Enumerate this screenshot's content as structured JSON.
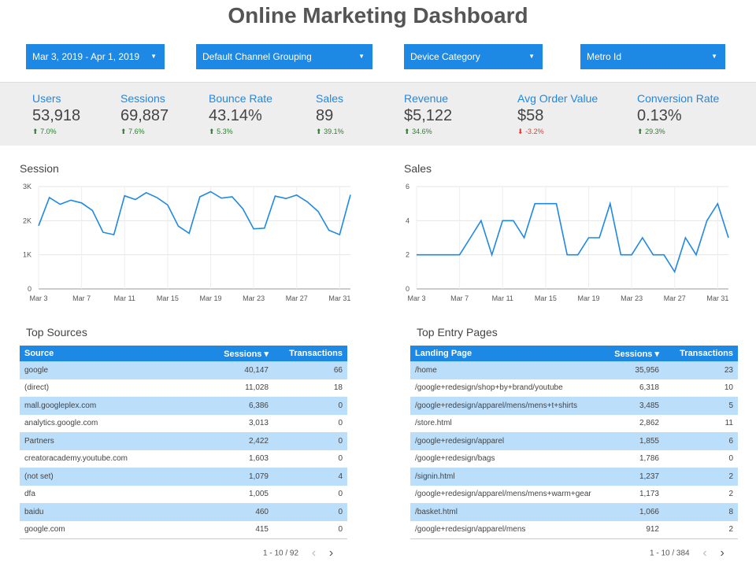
{
  "title": "Online Marketing Dashboard",
  "filters": [
    {
      "label": "Mar 3, 2019 - Apr 1, 2019"
    },
    {
      "label": "Default Channel Grouping"
    },
    {
      "label": "Device Category"
    },
    {
      "label": "Metro Id"
    }
  ],
  "kpis": [
    {
      "label": "Users",
      "value": "53,918",
      "change": "7.0%",
      "direction": "up"
    },
    {
      "label": "Sessions",
      "value": "69,887",
      "change": "7.6%",
      "direction": "up"
    },
    {
      "label": "Bounce Rate",
      "value": "43.14%",
      "change": "5.3%",
      "direction": "up"
    },
    {
      "label": "Sales",
      "value": "89",
      "change": "39.1%",
      "direction": "up"
    },
    {
      "label": "Revenue",
      "value": "$5,122",
      "change": "34.6%",
      "direction": "up"
    },
    {
      "label": "Avg Order Value",
      "value": "$58",
      "change": "-3.2%",
      "direction": "down"
    },
    {
      "label": "Conversion Rate",
      "value": "0.13%",
      "change": "29.3%",
      "direction": "up"
    }
  ],
  "colors": {
    "accent": "#1e88e5",
    "row_highlight": "#bbdefb",
    "positive": "#2e7d32",
    "negative": "#e53935"
  },
  "chart_data": [
    {
      "type": "line",
      "title": "Session",
      "x_tick_labels": [
        "Mar 3",
        "Mar 7",
        "Mar 11",
        "Mar 15",
        "Mar 19",
        "Mar 23",
        "Mar 27",
        "Mar 31"
      ],
      "y_tick_labels": [
        "0",
        "1K",
        "2K",
        "3K"
      ],
      "ylim": [
        0,
        3000
      ],
      "grid": true,
      "x": [
        "Mar 3",
        "Mar 4",
        "Mar 5",
        "Mar 6",
        "Mar 7",
        "Mar 8",
        "Mar 9",
        "Mar 10",
        "Mar 11",
        "Mar 12",
        "Mar 13",
        "Mar 14",
        "Mar 15",
        "Mar 16",
        "Mar 17",
        "Mar 18",
        "Mar 19",
        "Mar 20",
        "Mar 21",
        "Mar 22",
        "Mar 23",
        "Mar 24",
        "Mar 25",
        "Mar 26",
        "Mar 27",
        "Mar 28",
        "Mar 29",
        "Mar 30",
        "Mar 31",
        "Apr 1"
      ],
      "values": [
        1850,
        2680,
        2480,
        2600,
        2520,
        2300,
        1660,
        1590,
        2730,
        2620,
        2820,
        2680,
        2460,
        1840,
        1630,
        2700,
        2850,
        2660,
        2700,
        2350,
        1760,
        1780,
        2720,
        2650,
        2750,
        2550,
        2270,
        1720,
        1590,
        2760
      ]
    },
    {
      "type": "line",
      "title": "Sales",
      "x_tick_labels": [
        "Mar 3",
        "Mar 7",
        "Mar 11",
        "Mar 15",
        "Mar 19",
        "Mar 23",
        "Mar 27",
        "Mar 31"
      ],
      "y_tick_labels": [
        "0",
        "2",
        "4",
        "6"
      ],
      "ylim": [
        0,
        6
      ],
      "grid": true,
      "x": [
        "Mar 3",
        "Mar 4",
        "Mar 5",
        "Mar 6",
        "Mar 7",
        "Mar 8",
        "Mar 9",
        "Mar 10",
        "Mar 11",
        "Mar 12",
        "Mar 13",
        "Mar 14",
        "Mar 15",
        "Mar 16",
        "Mar 17",
        "Mar 18",
        "Mar 19",
        "Mar 20",
        "Mar 21",
        "Mar 22",
        "Mar 23",
        "Mar 24",
        "Mar 25",
        "Mar 26",
        "Mar 27",
        "Mar 28",
        "Mar 29",
        "Mar 30",
        "Mar 31",
        "Apr 1"
      ],
      "values": [
        2,
        2,
        2,
        2,
        2,
        3,
        4,
        2,
        4,
        4,
        3,
        5,
        5,
        5,
        2,
        2,
        3,
        3,
        5,
        2,
        2,
        3,
        2,
        2,
        1,
        3,
        2,
        4,
        5,
        3
      ]
    }
  ],
  "top_sources": {
    "title": "Top Sources",
    "headers": {
      "col1": "Source",
      "col2": "Sessions ▾",
      "col3": "Transactions"
    },
    "rows": [
      {
        "name": "google",
        "sessions": "40,147",
        "transactions": "66"
      },
      {
        "name": "(direct)",
        "sessions": "11,028",
        "transactions": "18"
      },
      {
        "name": "mall.googleplex.com",
        "sessions": "6,386",
        "transactions": "0"
      },
      {
        "name": "analytics.google.com",
        "sessions": "3,013",
        "transactions": "0"
      },
      {
        "name": "Partners",
        "sessions": "2,422",
        "transactions": "0"
      },
      {
        "name": "creatoracademy.youtube.com",
        "sessions": "1,603",
        "transactions": "0"
      },
      {
        "name": "(not set)",
        "sessions": "1,079",
        "transactions": "4"
      },
      {
        "name": "dfa",
        "sessions": "1,005",
        "transactions": "0"
      },
      {
        "name": "baidu",
        "sessions": "460",
        "transactions": "0"
      },
      {
        "name": "google.com",
        "sessions": "415",
        "transactions": "0"
      }
    ],
    "pagination": "1 - 10 / 92"
  },
  "top_entry_pages": {
    "title": "Top Entry Pages",
    "headers": {
      "col1": "Landing Page",
      "col2": "Sessions ▾",
      "col3": "Transactions"
    },
    "rows": [
      {
        "name": "/home",
        "sessions": "35,956",
        "transactions": "23"
      },
      {
        "name": "/google+redesign/shop+by+brand/youtube",
        "sessions": "6,318",
        "transactions": "10"
      },
      {
        "name": "/google+redesign/apparel/mens/mens+t+shirts",
        "sessions": "3,485",
        "transactions": "5"
      },
      {
        "name": "/store.html",
        "sessions": "2,862",
        "transactions": "11"
      },
      {
        "name": "/google+redesign/apparel",
        "sessions": "1,855",
        "transactions": "6"
      },
      {
        "name": "/google+redesign/bags",
        "sessions": "1,786",
        "transactions": "0"
      },
      {
        "name": "/signin.html",
        "sessions": "1,237",
        "transactions": "2"
      },
      {
        "name": "/google+redesign/apparel/mens/mens+warm+gear",
        "sessions": "1,173",
        "transactions": "2"
      },
      {
        "name": "/basket.html",
        "sessions": "1,066",
        "transactions": "8"
      },
      {
        "name": "/google+redesign/apparel/mens",
        "sessions": "912",
        "transactions": "2"
      }
    ],
    "pagination": "1 - 10 / 384"
  },
  "icons": {
    "caret": "caret-down-icon",
    "prev": "chevron-left-icon",
    "next": "chevron-right-icon",
    "trend_up": "arrow-up-icon",
    "trend_down": "arrow-down-icon"
  }
}
